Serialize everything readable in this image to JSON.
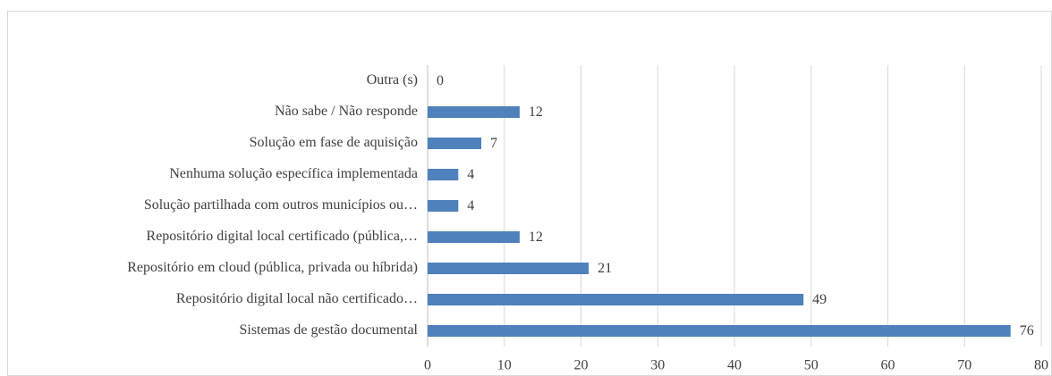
{
  "chart_data": {
    "type": "bar",
    "orientation": "horizontal",
    "categories": [
      "Outra (s)",
      "Não sabe / Não responde",
      "Solução em fase de aquisição",
      "Nenhuma solução específica implementada",
      "Solução partilhada com outros municípios ou…",
      "Repositório digital local certificado (pública,…",
      "Repositório em cloud (pública, privada ou híbrida)",
      "Repositório digital local não certificado…",
      "Sistemas de gestão documental"
    ],
    "values": [
      0,
      12,
      7,
      4,
      4,
      12,
      21,
      49,
      76
    ],
    "color": "#4f81bd",
    "xlim": [
      0,
      80
    ],
    "xticks": [
      0,
      10,
      20,
      30,
      40,
      50,
      60,
      70,
      80
    ],
    "grid": true
  }
}
